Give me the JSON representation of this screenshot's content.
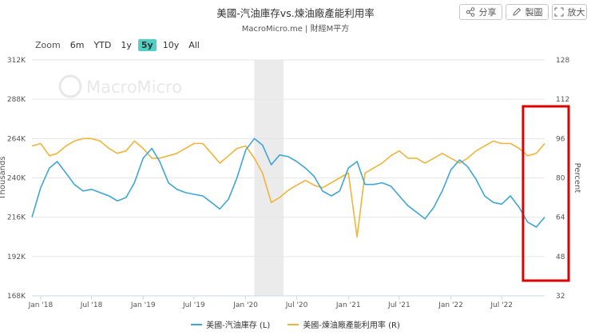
{
  "title": "美國-汽油庫存vs.煉油廠產能利用率",
  "subtitle": "MacroMicro.me | 財經M平方",
  "watermark": "MacroMicro",
  "toolbar": {
    "share": "分享",
    "draw": "製圖",
    "zoom": "放大"
  },
  "zoom_bar": {
    "label": "Zoom",
    "options": [
      "6m",
      "YTD",
      "1y",
      "5y",
      "10y",
      "All"
    ],
    "active": "5y"
  },
  "colors": {
    "left_series": "#3fa6d4",
    "right_series": "#f0b43a",
    "highlight": "#e00000",
    "shade": "#ebebeb"
  },
  "chart_data": {
    "type": "line",
    "y_left": {
      "label": "Thousands",
      "min": 168,
      "max": 312,
      "ticks": [
        168,
        192,
        216,
        240,
        264,
        288,
        312
      ],
      "tick_labels": [
        "168K",
        "192K",
        "216K",
        "240K",
        "264K",
        "288K",
        "312K"
      ]
    },
    "y_right": {
      "label": "Percent",
      "min": 32,
      "max": 128,
      "ticks": [
        32,
        48,
        64,
        80,
        96,
        112,
        128
      ],
      "tick_labels": [
        "32",
        "48",
        "64",
        "80",
        "96",
        "112",
        "128"
      ]
    },
    "x_range": [
      "2017-12-01",
      "2022-12-01"
    ],
    "x_ticks": [
      {
        "label": "Jan '18",
        "date": "2018-01-01"
      },
      {
        "label": "Jul '18",
        "date": "2018-07-01"
      },
      {
        "label": "Jan '19",
        "date": "2019-01-01"
      },
      {
        "label": "Jul '19",
        "date": "2019-07-01"
      },
      {
        "label": "Jan '20",
        "date": "2020-01-01"
      },
      {
        "label": "Jul '20",
        "date": "2020-07-01"
      },
      {
        "label": "Jan '21",
        "date": "2021-01-01"
      },
      {
        "label": "Jul '21",
        "date": "2021-07-01"
      },
      {
        "label": "Jan '22",
        "date": "2022-01-01"
      },
      {
        "label": "Jul '22",
        "date": "2022-07-01"
      }
    ],
    "shaded_period": [
      "2020-02-01",
      "2020-05-15"
    ],
    "highlight_box": [
      "2022-09-15",
      "2022-12-01"
    ],
    "series": [
      {
        "name": "美國-汽油庫存 (L)",
        "axis": "left",
        "x": [
          "2017-12-01",
          "2018-01-01",
          "2018-02-01",
          "2018-03-01",
          "2018-04-01",
          "2018-05-01",
          "2018-06-01",
          "2018-07-01",
          "2018-08-01",
          "2018-09-01",
          "2018-10-01",
          "2018-11-01",
          "2018-12-01",
          "2019-01-01",
          "2019-02-01",
          "2019-03-01",
          "2019-04-01",
          "2019-05-01",
          "2019-06-01",
          "2019-07-01",
          "2019-08-01",
          "2019-09-01",
          "2019-10-01",
          "2019-11-01",
          "2019-12-01",
          "2020-01-01",
          "2020-02-01",
          "2020-03-01",
          "2020-04-01",
          "2020-05-01",
          "2020-06-01",
          "2020-07-01",
          "2020-08-01",
          "2020-09-01",
          "2020-10-01",
          "2020-11-01",
          "2020-12-01",
          "2021-01-01",
          "2021-02-01",
          "2021-03-01",
          "2021-04-01",
          "2021-05-01",
          "2021-06-01",
          "2021-07-01",
          "2021-08-01",
          "2021-09-01",
          "2021-10-01",
          "2021-11-01",
          "2021-12-01",
          "2022-01-01",
          "2022-02-01",
          "2022-03-01",
          "2022-04-01",
          "2022-05-01",
          "2022-06-01",
          "2022-07-01",
          "2022-08-01",
          "2022-09-01",
          "2022-10-01",
          "2022-11-01",
          "2022-12-01"
        ],
        "values": [
          216,
          234,
          246,
          250,
          243,
          236,
          232,
          233,
          231,
          229,
          226,
          228,
          237,
          252,
          258,
          250,
          237,
          233,
          231,
          230,
          229,
          225,
          221,
          227,
          240,
          257,
          264,
          260,
          248,
          254,
          253,
          250,
          246,
          241,
          232,
          229,
          232,
          246,
          250,
          236,
          236,
          237,
          235,
          229,
          223,
          219,
          215,
          222,
          232,
          245,
          251,
          247,
          239,
          229,
          225,
          224,
          229,
          222,
          213,
          210,
          216
        ]
      },
      {
        "name": "美國-煉油廠產能利用率 (R)",
        "axis": "right",
        "x": [
          "2017-12-01",
          "2018-01-01",
          "2018-02-01",
          "2018-03-01",
          "2018-04-01",
          "2018-05-01",
          "2018-06-01",
          "2018-07-01",
          "2018-08-01",
          "2018-09-01",
          "2018-10-01",
          "2018-11-01",
          "2018-12-01",
          "2019-01-01",
          "2019-02-01",
          "2019-03-01",
          "2019-04-01",
          "2019-05-01",
          "2019-06-01",
          "2019-07-01",
          "2019-08-01",
          "2019-09-01",
          "2019-10-01",
          "2019-11-01",
          "2019-12-01",
          "2020-01-01",
          "2020-02-01",
          "2020-03-01",
          "2020-04-01",
          "2020-05-01",
          "2020-06-01",
          "2020-07-01",
          "2020-08-01",
          "2020-09-01",
          "2020-10-01",
          "2020-11-01",
          "2020-12-01",
          "2021-01-01",
          "2021-02-01",
          "2021-03-01",
          "2021-04-01",
          "2021-05-01",
          "2021-06-01",
          "2021-07-01",
          "2021-08-01",
          "2021-09-01",
          "2021-10-01",
          "2021-11-01",
          "2021-12-01",
          "2022-01-01",
          "2022-02-01",
          "2022-03-01",
          "2022-04-01",
          "2022-05-01",
          "2022-06-01",
          "2022-07-01",
          "2022-08-01",
          "2022-09-01",
          "2022-10-01",
          "2022-11-01",
          "2022-12-01"
        ],
        "values": [
          93,
          94,
          89,
          90,
          93,
          95,
          96,
          96,
          95,
          92,
          90,
          91,
          95,
          92,
          88,
          88,
          89,
          90,
          92,
          94,
          94,
          90,
          86,
          89,
          92,
          93,
          88,
          82,
          70,
          72,
          75,
          77,
          79,
          77,
          76,
          78,
          80,
          82,
          56,
          82,
          84,
          86,
          89,
          91,
          88,
          88,
          86,
          88,
          90,
          88,
          86,
          88,
          91,
          93,
          95,
          94,
          94,
          92,
          89,
          90,
          94
        ]
      }
    ]
  }
}
